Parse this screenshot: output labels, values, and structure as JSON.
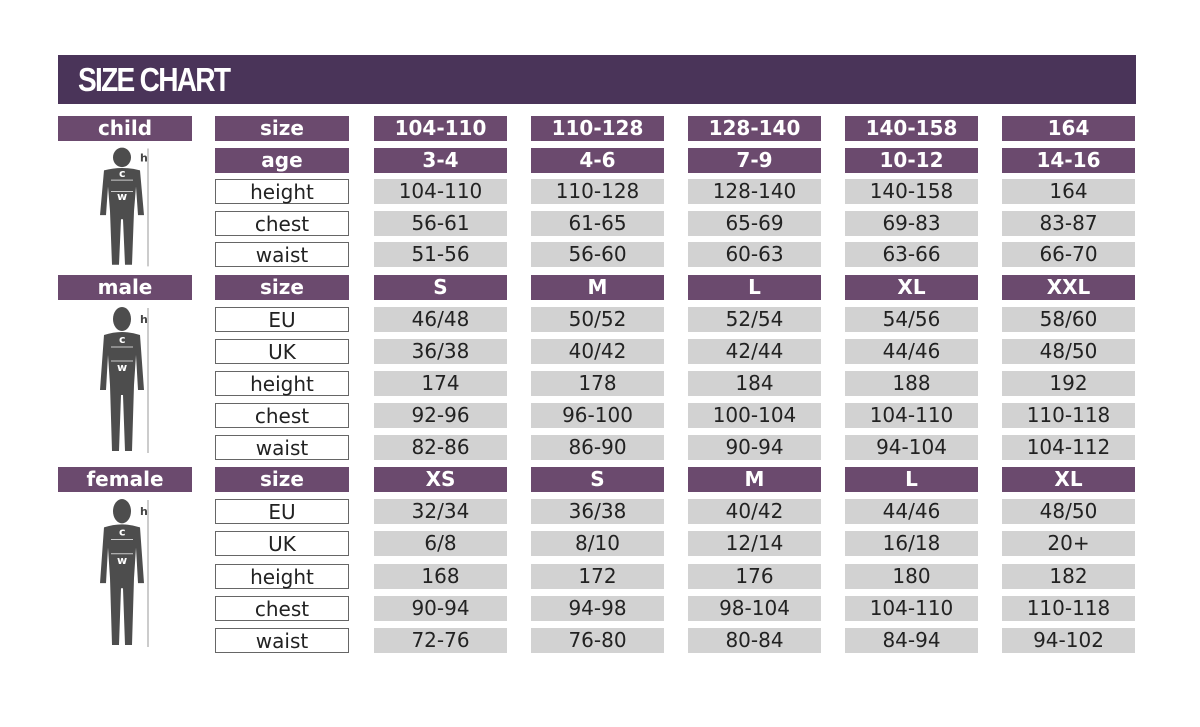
{
  "title": "SIZE CHART",
  "colors": {
    "header": "#4a3459",
    "purple_cell": "#6b4a6e",
    "gray_cell": "#d2d2d2",
    "silhouette": "#4d4d4d"
  },
  "figure_labels": {
    "height": "h",
    "chest": "c",
    "waist": "w"
  },
  "sections": [
    {
      "category": "child",
      "rows": [
        {
          "label": "size",
          "style": "header",
          "values": [
            "104-110",
            "110-128",
            "128-140",
            "140-158",
            "164"
          ]
        },
        {
          "label": "age",
          "style": "header",
          "values": [
            "3-4",
            "4-6",
            "7-9",
            "10-12",
            "14-16"
          ]
        },
        {
          "label": "height",
          "values": [
            "104-110",
            "110-128",
            "128-140",
            "140-158",
            "164"
          ]
        },
        {
          "label": "chest",
          "values": [
            "56-61",
            "61-65",
            "65-69",
            "69-83",
            "83-87"
          ]
        },
        {
          "label": "waist",
          "values": [
            "51-56",
            "56-60",
            "60-63",
            "63-66",
            "66-70"
          ]
        }
      ]
    },
    {
      "category": "male",
      "rows": [
        {
          "label": "size",
          "style": "header",
          "values": [
            "S",
            "M",
            "L",
            "XL",
            "XXL"
          ]
        },
        {
          "label": "EU",
          "values": [
            "46/48",
            "50/52",
            "52/54",
            "54/56",
            "58/60"
          ]
        },
        {
          "label": "UK",
          "values": [
            "36/38",
            "40/42",
            "42/44",
            "44/46",
            "48/50"
          ]
        },
        {
          "label": "height",
          "values": [
            "174",
            "178",
            "184",
            "188",
            "192"
          ]
        },
        {
          "label": "chest",
          "values": [
            "92-96",
            "96-100",
            "100-104",
            "104-110",
            "110-118"
          ]
        },
        {
          "label": "waist",
          "values": [
            "82-86",
            "86-90",
            "90-94",
            "94-104",
            "104-112"
          ]
        }
      ]
    },
    {
      "category": "female",
      "rows": [
        {
          "label": "size",
          "style": "header",
          "values": [
            "XS",
            "S",
            "M",
            "L",
            "XL"
          ]
        },
        {
          "label": "EU",
          "values": [
            "32/34",
            "36/38",
            "40/42",
            "44/46",
            "48/50"
          ]
        },
        {
          "label": "UK",
          "values": [
            "6/8",
            "8/10",
            "12/14",
            "16/18",
            "20+"
          ]
        },
        {
          "label": "height",
          "values": [
            "168",
            "172",
            "176",
            "180",
            "182"
          ]
        },
        {
          "label": "chest",
          "values": [
            "90-94",
            "94-98",
            "98-104",
            "104-110",
            "110-118"
          ]
        },
        {
          "label": "waist",
          "values": [
            "72-76",
            "76-80",
            "80-84",
            "84-94",
            "94-102"
          ]
        }
      ]
    }
  ]
}
